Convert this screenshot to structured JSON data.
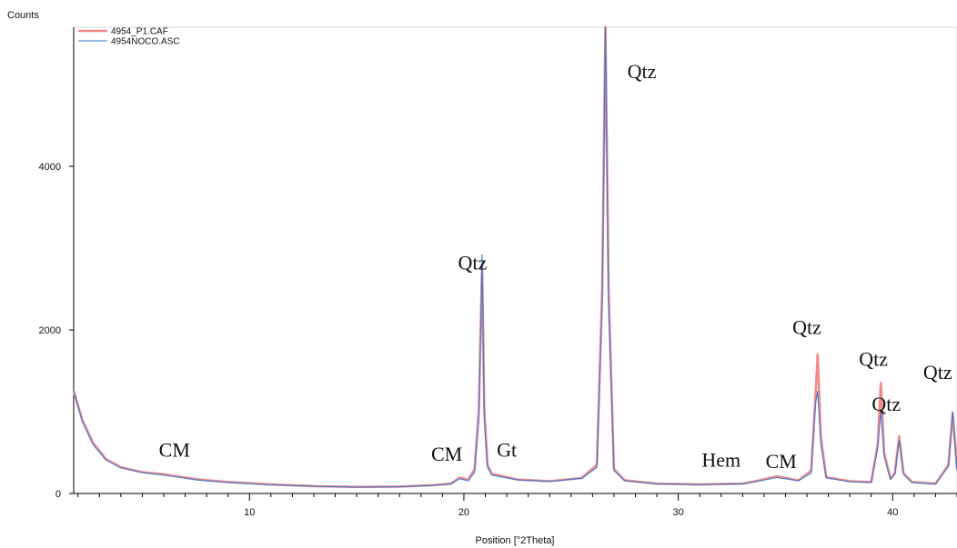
{
  "chart_data": {
    "type": "line",
    "ylabel": "Counts",
    "xlabel": "Position [°2Theta]",
    "xlim": [
      1.8,
      43.0
    ],
    "ylim": [
      0,
      5700
    ],
    "x_ticks": [
      10,
      20,
      30,
      40
    ],
    "y_ticks": [
      0,
      2000,
      4000
    ],
    "grid": false,
    "legend_position": "top-left",
    "series": [
      {
        "name": "4954_P1.CAF",
        "color": "#f08a8a",
        "points": [
          [
            1.8,
            1250
          ],
          [
            2.2,
            900
          ],
          [
            2.7,
            620
          ],
          [
            3.3,
            420
          ],
          [
            4.0,
            320
          ],
          [
            5.0,
            260
          ],
          [
            6.0,
            235
          ],
          [
            6.5,
            215
          ],
          [
            7.5,
            175
          ],
          [
            9.0,
            140
          ],
          [
            11.0,
            110
          ],
          [
            13.0,
            90
          ],
          [
            15.0,
            80
          ],
          [
            17.0,
            85
          ],
          [
            18.5,
            100
          ],
          [
            19.4,
            120
          ],
          [
            19.8,
            195
          ],
          [
            20.2,
            165
          ],
          [
            20.5,
            300
          ],
          [
            20.7,
            1050
          ],
          [
            20.85,
            2800
          ],
          [
            20.95,
            1050
          ],
          [
            21.1,
            350
          ],
          [
            21.3,
            240
          ],
          [
            22.5,
            170
          ],
          [
            24.0,
            150
          ],
          [
            25.5,
            190
          ],
          [
            26.2,
            350
          ],
          [
            26.45,
            2500
          ],
          [
            26.6,
            5700
          ],
          [
            26.75,
            2500
          ],
          [
            27.0,
            300
          ],
          [
            27.5,
            160
          ],
          [
            29.0,
            120
          ],
          [
            31.0,
            110
          ],
          [
            33.0,
            120
          ],
          [
            33.6,
            150
          ],
          [
            34.6,
            210
          ],
          [
            35.0,
            190
          ],
          [
            35.6,
            160
          ],
          [
            36.2,
            280
          ],
          [
            36.4,
            1200
          ],
          [
            36.5,
            1700
          ],
          [
            36.65,
            700
          ],
          [
            36.9,
            200
          ],
          [
            38.0,
            150
          ],
          [
            39.0,
            140
          ],
          [
            39.3,
            600
          ],
          [
            39.45,
            1350
          ],
          [
            39.6,
            500
          ],
          [
            39.9,
            180
          ],
          [
            40.1,
            250
          ],
          [
            40.3,
            700
          ],
          [
            40.5,
            250
          ],
          [
            40.9,
            140
          ],
          [
            42.0,
            120
          ],
          [
            42.6,
            350
          ],
          [
            42.8,
            980
          ],
          [
            43.0,
            300
          ]
        ]
      },
      {
        "name": "4954NOCO.ASC",
        "color": "#3a7fd0",
        "points": [
          [
            1.8,
            1270
          ],
          [
            2.2,
            880
          ],
          [
            2.7,
            600
          ],
          [
            3.3,
            410
          ],
          [
            4.0,
            315
          ],
          [
            5.0,
            255
          ],
          [
            6.0,
            225
          ],
          [
            6.5,
            205
          ],
          [
            7.5,
            168
          ],
          [
            9.0,
            135
          ],
          [
            11.0,
            105
          ],
          [
            13.0,
            88
          ],
          [
            15.0,
            78
          ],
          [
            17.0,
            82
          ],
          [
            18.5,
            98
          ],
          [
            19.4,
            118
          ],
          [
            19.8,
            180
          ],
          [
            20.2,
            155
          ],
          [
            20.5,
            260
          ],
          [
            20.7,
            900
          ],
          [
            20.85,
            2920
          ],
          [
            20.95,
            900
          ],
          [
            21.1,
            320
          ],
          [
            21.3,
            225
          ],
          [
            22.5,
            165
          ],
          [
            24.0,
            148
          ],
          [
            25.5,
            185
          ],
          [
            26.2,
            320
          ],
          [
            26.45,
            2300
          ],
          [
            26.6,
            5700
          ],
          [
            26.75,
            2300
          ],
          [
            27.0,
            280
          ],
          [
            27.5,
            155
          ],
          [
            29.0,
            118
          ],
          [
            31.0,
            108
          ],
          [
            33.0,
            118
          ],
          [
            33.6,
            145
          ],
          [
            34.6,
            195
          ],
          [
            35.0,
            180
          ],
          [
            35.6,
            155
          ],
          [
            36.2,
            250
          ],
          [
            36.4,
            1100
          ],
          [
            36.5,
            1250
          ],
          [
            36.65,
            600
          ],
          [
            36.9,
            190
          ],
          [
            38.0,
            145
          ],
          [
            39.0,
            135
          ],
          [
            39.3,
            550
          ],
          [
            39.45,
            1000
          ],
          [
            39.6,
            450
          ],
          [
            39.9,
            170
          ],
          [
            40.1,
            235
          ],
          [
            40.3,
            650
          ],
          [
            40.5,
            235
          ],
          [
            40.9,
            135
          ],
          [
            42.0,
            115
          ],
          [
            42.6,
            330
          ],
          [
            42.8,
            1000
          ],
          [
            43.0,
            280
          ]
        ]
      }
    ],
    "annotations": [
      {
        "text": "CM",
        "x": 6.5,
        "y": 450
      },
      {
        "text": "CM",
        "x": 19.2,
        "y": 400
      },
      {
        "text": "Gt",
        "x": 22.0,
        "y": 450
      },
      {
        "text": "Qtz",
        "x": 20.4,
        "y": 2740
      },
      {
        "text": "Qtz",
        "x": 28.3,
        "y": 5080
      },
      {
        "text": "Hem",
        "x": 32.0,
        "y": 330
      },
      {
        "text": "CM",
        "x": 34.8,
        "y": 310
      },
      {
        "text": "Qtz",
        "x": 36.0,
        "y": 1950
      },
      {
        "text": "Qtz",
        "x": 39.1,
        "y": 1560
      },
      {
        "text": "Qtz",
        "x": 39.7,
        "y": 1010
      },
      {
        "text": "Qtz",
        "x": 42.1,
        "y": 1400
      }
    ]
  }
}
